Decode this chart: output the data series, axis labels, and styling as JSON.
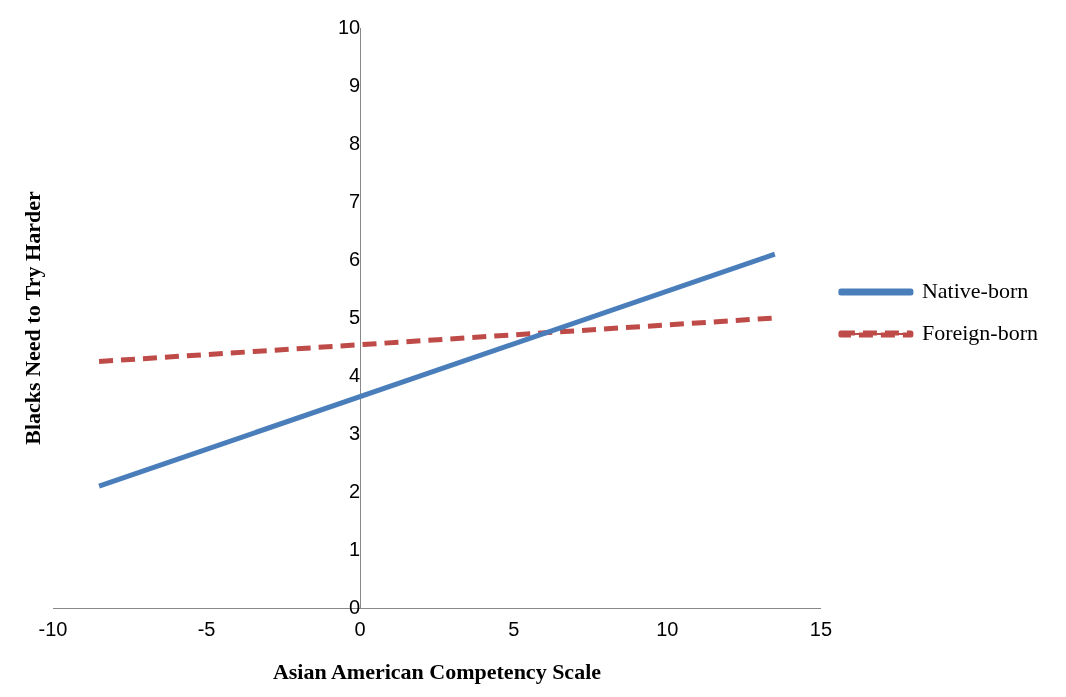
{
  "chart_data": {
    "type": "line",
    "xlabel": "Asian American Competency Scale",
    "ylabel": "Blacks Need to Try Harder",
    "x": [
      -8.5,
      13.5
    ],
    "series": [
      {
        "name": "Native-born",
        "color": "#4a7ebb",
        "values": [
          2.1,
          6.1
        ],
        "line_style": "solid"
      },
      {
        "name": "Foreign-born",
        "color": "#be4b48",
        "values": [
          4.25,
          5.0
        ],
        "line_style": "dashed"
      }
    ],
    "xlim": [
      -10,
      15
    ],
    "xticks": [
      -10,
      -5,
      0,
      5,
      10,
      15
    ],
    "ylim": [
      0,
      10
    ],
    "yticks": [
      0,
      1,
      2,
      3,
      4,
      5,
      6,
      7,
      8,
      9,
      10
    ],
    "grid": false,
    "legend": "right",
    "marker": "none"
  }
}
